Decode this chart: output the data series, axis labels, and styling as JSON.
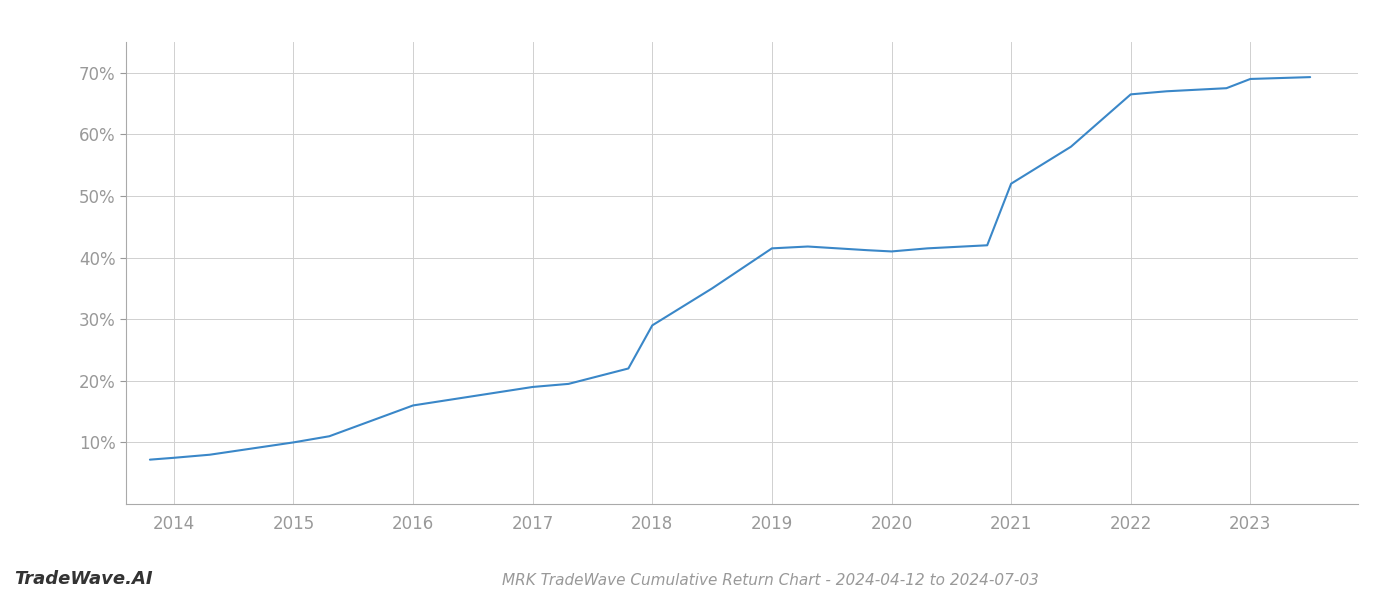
{
  "x_years": [
    2013.8,
    2014.0,
    2014.3,
    2015.0,
    2015.3,
    2016.0,
    2016.5,
    2017.0,
    2017.3,
    2017.8,
    2018.0,
    2018.5,
    2019.0,
    2019.3,
    2019.8,
    2020.0,
    2020.3,
    2020.8,
    2021.0,
    2021.5,
    2022.0,
    2022.3,
    2022.8,
    2023.0,
    2023.5
  ],
  "y_values": [
    7.2,
    7.5,
    8.0,
    10.0,
    11.0,
    16.0,
    17.5,
    19.0,
    19.5,
    22.0,
    29.0,
    35.0,
    41.5,
    41.8,
    41.2,
    41.0,
    41.5,
    42.0,
    52.0,
    58.0,
    66.5,
    67.0,
    67.5,
    69.0,
    69.3
  ],
  "line_color": "#3a87c8",
  "line_width": 1.5,
  "title": "MRK TradeWave Cumulative Return Chart - 2024-04-12 to 2024-07-03",
  "watermark": "TradeWave.AI",
  "background_color": "#ffffff",
  "grid_color": "#d0d0d0",
  "tick_label_color": "#999999",
  "title_color": "#999999",
  "watermark_color": "#333333",
  "ylim": [
    0,
    75
  ],
  "xlim": [
    2013.6,
    2023.9
  ],
  "yticks": [
    10,
    20,
    30,
    40,
    50,
    60,
    70
  ],
  "xticks": [
    2014,
    2015,
    2016,
    2017,
    2018,
    2019,
    2020,
    2021,
    2022,
    2023
  ],
  "title_fontsize": 11,
  "watermark_fontsize": 13,
  "tick_fontsize": 12
}
